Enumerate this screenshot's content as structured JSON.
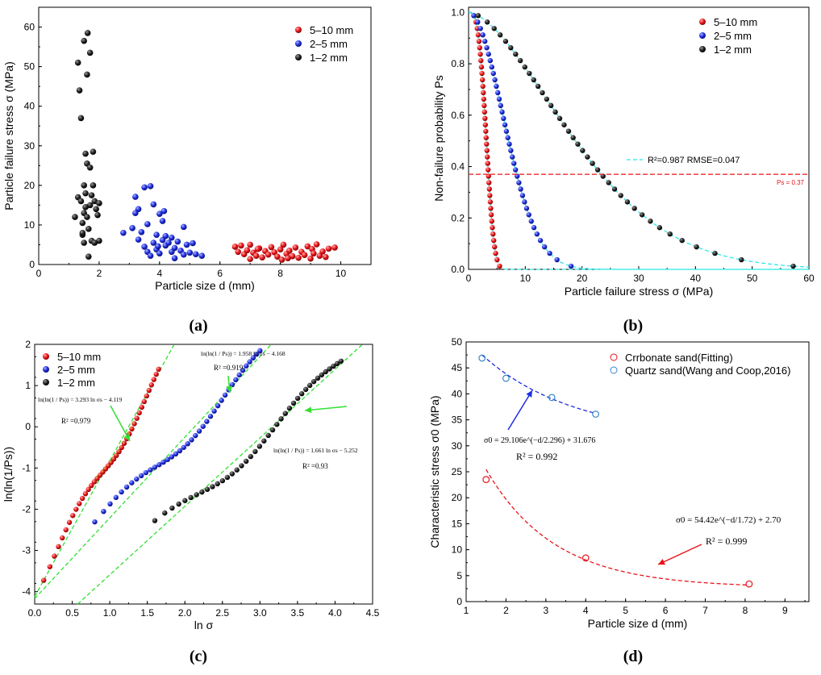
{
  "chart_data": [
    {
      "id": "a",
      "type": "scatter",
      "panel_label": "(a)",
      "xlabel": "Particle size d (mm)",
      "ylabel": "Particle failure stress σ (MPa)",
      "xlim": [
        0,
        11
      ],
      "ylim": [
        0,
        65
      ],
      "xticks": [
        "0",
        "2",
        "4",
        "6",
        "8",
        "10"
      ],
      "yticks": [
        "0",
        "10",
        "20",
        "30",
        "40",
        "50",
        "60"
      ],
      "legend_position": "top-right",
      "series": [
        {
          "name": "5–10 mm",
          "color": "#e8141b",
          "points": [
            [
              6.6,
              3.2
            ],
            [
              6.7,
              4.8
            ],
            [
              6.8,
              2.6
            ],
            [
              6.9,
              3.6
            ],
            [
              7.0,
              1.4
            ],
            [
              7.0,
              5.0
            ],
            [
              7.1,
              3.0
            ],
            [
              7.2,
              2.2
            ],
            [
              7.3,
              4.1
            ],
            [
              7.4,
              1.8
            ],
            [
              7.5,
              3.4
            ],
            [
              7.6,
              2.5
            ],
            [
              7.7,
              4.4
            ],
            [
              7.8,
              3.1
            ],
            [
              7.9,
              2.0
            ],
            [
              8.0,
              3.8
            ],
            [
              8.05,
              1.2
            ],
            [
              8.1,
              5.0
            ],
            [
              8.2,
              2.7
            ],
            [
              8.3,
              3.5
            ],
            [
              8.4,
              2.1
            ],
            [
              8.5,
              4.3
            ],
            [
              8.6,
              1.7
            ],
            [
              8.7,
              3.2
            ],
            [
              8.8,
              2.4
            ],
            [
              8.9,
              4.6
            ],
            [
              9.0,
              1.5
            ],
            [
              9.05,
              3.9
            ],
            [
              9.1,
              2.8
            ],
            [
              9.2,
              5.1
            ],
            [
              9.3,
              2.2
            ],
            [
              9.4,
              3.3
            ],
            [
              9.5,
              1.9
            ],
            [
              9.6,
              4.0
            ],
            [
              9.8,
              4.3
            ],
            [
              6.5,
              4.5
            ],
            [
              7.25,
              3.9
            ],
            [
              8.25,
              1.6
            ]
          ]
        },
        {
          "name": "2–5 mm",
          "color": "#1f2ee0",
          "points": [
            [
              2.8,
              8.0
            ],
            [
              3.1,
              9.2
            ],
            [
              3.2,
              13.0
            ],
            [
              3.2,
              17.1
            ],
            [
              3.3,
              6.3
            ],
            [
              3.3,
              14.0
            ],
            [
              3.4,
              8.2
            ],
            [
              3.5,
              4.5
            ],
            [
              3.5,
              19.5
            ],
            [
              3.6,
              3.2
            ],
            [
              3.6,
              10.2
            ],
            [
              3.7,
              19.8
            ],
            [
              3.7,
              2.2
            ],
            [
              3.8,
              5.5
            ],
            [
              3.8,
              15.2
            ],
            [
              3.9,
              7.5
            ],
            [
              3.9,
              3.8
            ],
            [
              4.0,
              12.8
            ],
            [
              4.0,
              2.8
            ],
            [
              4.1,
              6.2
            ],
            [
              4.1,
              11.0
            ],
            [
              4.2,
              4.8
            ],
            [
              4.2,
              7.2
            ],
            [
              4.3,
              5.5
            ],
            [
              4.4,
              3.2
            ],
            [
              4.4,
              6.8
            ],
            [
              4.5,
              4.2
            ],
            [
              4.5,
              1.6
            ],
            [
              4.6,
              5.8
            ],
            [
              4.7,
              3.5
            ],
            [
              4.8,
              9.5
            ],
            [
              4.8,
              2.5
            ],
            [
              4.9,
              5.0
            ],
            [
              5.0,
              3.0
            ],
            [
              5.1,
              5.4
            ],
            [
              5.2,
              2.6
            ],
            [
              5.4,
              2.2
            ],
            [
              4.15,
              13.5
            ],
            [
              3.95,
              4.6
            ]
          ]
        },
        {
          "name": "1–2 mm",
          "color": "#111111",
          "points": [
            [
              1.2,
              12.0
            ],
            [
              1.3,
              17.0
            ],
            [
              1.3,
              51.0
            ],
            [
              1.35,
              44.0
            ],
            [
              1.4,
              37.0
            ],
            [
              1.4,
              16.0
            ],
            [
              1.45,
              10.5
            ],
            [
              1.45,
              7.5
            ],
            [
              1.5,
              56.5
            ],
            [
              1.5,
              13.0
            ],
            [
              1.5,
              5.5
            ],
            [
              1.55,
              18.0
            ],
            [
              1.55,
              28.0
            ],
            [
              1.6,
              48.0
            ],
            [
              1.6,
              25.5
            ],
            [
              1.6,
              12.0
            ],
            [
              1.62,
              58.5
            ],
            [
              1.65,
              9.0
            ],
            [
              1.65,
              2.0
            ],
            [
              1.7,
              53.5
            ],
            [
              1.7,
              24.5
            ],
            [
              1.7,
              15.0
            ],
            [
              1.75,
              6.0
            ],
            [
              1.8,
              28.5
            ],
            [
              1.8,
              20.0
            ],
            [
              1.85,
              16.0
            ],
            [
              1.9,
              14.0
            ],
            [
              1.95,
              12.5
            ],
            [
              2.0,
              15.5
            ],
            [
              2.0,
              6.0
            ],
            [
              1.55,
              14.5
            ],
            [
              1.75,
              17.5
            ],
            [
              1.85,
              5.5
            ],
            [
              1.5,
              20.0
            ],
            [
              1.45,
              8.0
            ]
          ]
        }
      ]
    },
    {
      "id": "b",
      "type": "scatter",
      "panel_label": "(b)",
      "xlabel": "Particle failure stress σ (MPa)",
      "ylabel": "Non-failure probability Ps",
      "xlim": [
        0,
        60
      ],
      "ylim": [
        0,
        1.02
      ],
      "xticks": [
        "0",
        "10",
        "20",
        "30",
        "40",
        "50",
        "60"
      ],
      "yticks": [
        "0.0",
        "0.2",
        "0.4",
        "0.6",
        "0.8",
        "1.0"
      ],
      "legend_position": "top-right",
      "series": [
        {
          "name": "5–10 mm",
          "color": "#e8141b",
          "fit": {
            "sigma0": 3.5,
            "m": 3.3
          },
          "points_from_fit": true,
          "n": 40
        },
        {
          "name": "2–5 mm",
          "color": "#1f2ee0",
          "fit": {
            "sigma0": 8.5,
            "m": 1.96
          },
          "points_from_fit": true,
          "n": 40
        },
        {
          "name": "1–2 mm",
          "color": "#111111",
          "fit": {
            "sigma0": 23.5,
            "m": 1.66
          },
          "points_from_fit": true,
          "n": 40
        }
      ],
      "fit_legend": "R²=0.987 RMSE=0.047",
      "ps_line_value": 0.37,
      "ps_line_label": "Ps = 0.37"
    },
    {
      "id": "c",
      "type": "scatter",
      "panel_label": "(c)",
      "xlabel": "ln σ",
      "ylabel": "ln(ln(1/Ps))",
      "xlim": [
        0,
        4.5
      ],
      "ylim": [
        -4.3,
        2
      ],
      "xticks": [
        "0.0",
        "0.5",
        "1.0",
        "1.5",
        "2.0",
        "2.5",
        "3.0",
        "3.5",
        "4.0",
        "4.5"
      ],
      "yticks": [
        "-4",
        "-3",
        "-2",
        "-1",
        "0",
        "1",
        "2"
      ],
      "legend_position": "top-left",
      "series": [
        {
          "name": "5–10 mm",
          "color": "#e8141b",
          "slope": 3.293,
          "intercept": -4.119,
          "xrange": [
            0.12,
            1.65
          ]
        },
        {
          "name": "2–5 mm",
          "color": "#1f2ee0",
          "slope": 1.958,
          "intercept": -4.168,
          "xrange": [
            0.8,
            3.0
          ]
        },
        {
          "name": "1–2 mm",
          "color": "#111111",
          "slope": 1.661,
          "intercept": -5.252,
          "xrange": [
            1.6,
            4.08
          ]
        }
      ],
      "annotations": [
        {
          "text": "ln(ln(1 / Ps)) = 3.293 ln σs − 4.119",
          "r2": "R² =0.979"
        },
        {
          "text": "ln(ln(1 / Ps)) = 1.958 ln σs − 4.168",
          "r2": "R² =0.919"
        },
        {
          "text": "ln(ln(1 / Ps)) = 1.661 ln σs − 5.252",
          "r2": "R² =0.93"
        }
      ]
    },
    {
      "id": "d",
      "type": "scatter",
      "panel_label": "(d)",
      "xlabel": "Particle size d (mm)",
      "ylabel": "Characteristic stress σ0 (MPa)",
      "xlim": [
        1,
        9.6
      ],
      "ylim": [
        0,
        50
      ],
      "xticks": [
        "1",
        "2",
        "3",
        "4",
        "5",
        "6",
        "7",
        "8",
        "9"
      ],
      "yticks": [
        "0",
        "5",
        "10",
        "15",
        "20",
        "25",
        "30",
        "35",
        "40",
        "45",
        "50"
      ],
      "legend_position": "top-right",
      "series": [
        {
          "name": "Crrbonate sand(Fitting)",
          "color": "#e8141b",
          "x": [
            1.5,
            4.0,
            8.1
          ],
          "y": [
            23.5,
            8.4,
            3.4
          ],
          "fit": {
            "a": 54.42,
            "b": 1.72,
            "c": 2.7,
            "xrange": [
              1.5,
              8.1
            ]
          }
        },
        {
          "name": "Quartz sand(Wang and Coop,2016)",
          "color": "#3a86c8",
          "x": [
            1.4,
            2.0,
            3.15,
            4.25
          ],
          "y": [
            46.9,
            43.0,
            39.3,
            36.1
          ],
          "fit": {
            "a": 29.106,
            "b": 2.296,
            "c": 31.676,
            "xrange": [
              1.4,
              4.25
            ]
          }
        }
      ],
      "annotations": [
        {
          "text": "σ0 = 29.106e^(−d/2.296) + 31.676",
          "r2": "R² = 0.992"
        },
        {
          "text": "σ0 = 54.42e^(−d/1.72) + 2.70",
          "r2": "R² = 0.999"
        }
      ]
    }
  ],
  "text": {
    "a_label": "(a)",
    "b_label": "(b)",
    "c_label": "(c)",
    "d_label": "(d)",
    "a_ylabel": "Particle failure stress σ (MPa)",
    "a_xlabel": "Particle size d (mm)",
    "b_ylabel": "Non-failure probability Ps",
    "b_xlabel": "Particle failure stress σ (MPa)",
    "c_ylabel": "ln(ln(1/Ps))",
    "c_xlabel": "ln σ",
    "d_ylabel": "Characteristic stress σ0 (MPa)",
    "d_xlabel": "Particle size d (mm)"
  }
}
